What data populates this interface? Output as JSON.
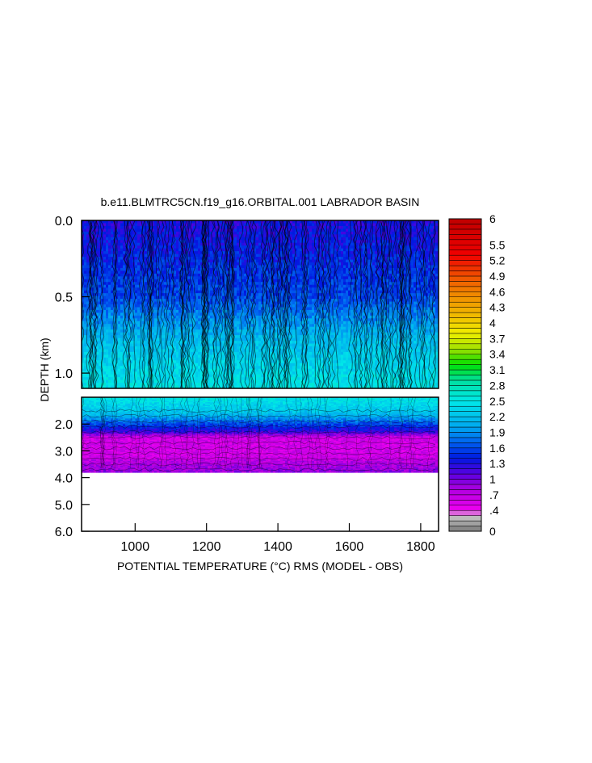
{
  "chart_data": {
    "type": "heatmap",
    "title": "b.e11.BLMTRC5CN.f19_g16.ORBITAL.001 LABRADOR BASIN",
    "xlabel": "POTENTIAL TEMPERATURE (°C) RMS (MODEL - OBS)",
    "ylabel": "DEPTH (km)",
    "xlim": [
      850,
      1850
    ],
    "x_ticks": [
      1000,
      1200,
      1400,
      1600,
      1800
    ],
    "x_tick_labels": [
      "1000",
      "1200",
      "1400",
      "1600",
      "1800"
    ],
    "panels": [
      {
        "name": "upper",
        "ylim": [
          0.0,
          1.1
        ],
        "y_ticks": [
          0.0,
          0.5,
          1.0
        ],
        "y_tick_labels": [
          "0.0",
          "0.5",
          "1.0"
        ],
        "profile": [
          {
            "depth": 0.0,
            "value": 1.3
          },
          {
            "depth": 0.5,
            "value": 1.6
          },
          {
            "depth": 0.8,
            "value": 2.2
          },
          {
            "depth": 1.1,
            "value": 2.5
          }
        ]
      },
      {
        "name": "lower",
        "ylim": [
          1.0,
          6.0
        ],
        "y_ticks": [
          2.0,
          3.0,
          4.0,
          5.0,
          6.0
        ],
        "y_tick_labels": [
          "2.0",
          "3.0",
          "4.0",
          "5.0",
          "6.0"
        ],
        "data_max_depth": 3.8,
        "profile": [
          {
            "depth": 1.0,
            "value": 2.5
          },
          {
            "depth": 1.6,
            "value": 2.2
          },
          {
            "depth": 2.0,
            "value": 1.6
          },
          {
            "depth": 2.3,
            "value": 1.2
          },
          {
            "depth": 2.5,
            "value": 0.6
          },
          {
            "depth": 3.2,
            "value": 0.6
          },
          {
            "depth": 3.5,
            "value": 0.8
          },
          {
            "depth": 3.8,
            "value": 0.9
          }
        ]
      }
    ],
    "colorbar": {
      "range": [
        0,
        6
      ],
      "step": 0.1,
      "labels": [
        "6",
        "5.5",
        "5.2",
        "4.9",
        "4.6",
        "4.3",
        "4",
        "3.7",
        "3.4",
        "3.1",
        "2.8",
        "2.5",
        "2.2",
        "1.9",
        "1.6",
        "1.3",
        "1",
        ".7",
        ".4",
        "0"
      ],
      "label_values": [
        6,
        5.5,
        5.2,
        4.9,
        4.6,
        4.3,
        4,
        3.7,
        3.4,
        3.1,
        2.8,
        2.5,
        2.2,
        1.9,
        1.6,
        1.3,
        1,
        0.7,
        0.4,
        0
      ],
      "stops": [
        {
          "v": 0.0,
          "color": "#7a7a7a"
        },
        {
          "v": 0.3,
          "color": "#c8c8c8"
        },
        {
          "v": 0.4,
          "color": "#f000f0"
        },
        {
          "v": 0.8,
          "color": "#b000e0"
        },
        {
          "v": 1.1,
          "color": "#5a00e0"
        },
        {
          "v": 1.4,
          "color": "#0018e0"
        },
        {
          "v": 1.7,
          "color": "#0060f0"
        },
        {
          "v": 2.0,
          "color": "#00a8f0"
        },
        {
          "v": 2.5,
          "color": "#00e8e8"
        },
        {
          "v": 2.9,
          "color": "#00e0a0"
        },
        {
          "v": 3.2,
          "color": "#00e000"
        },
        {
          "v": 3.5,
          "color": "#a0e000"
        },
        {
          "v": 3.8,
          "color": "#f0f000"
        },
        {
          "v": 4.1,
          "color": "#f0c000"
        },
        {
          "v": 4.5,
          "color": "#f09000"
        },
        {
          "v": 4.9,
          "color": "#f05000"
        },
        {
          "v": 5.3,
          "color": "#f00000"
        },
        {
          "v": 6.0,
          "color": "#c00000"
        }
      ]
    }
  }
}
